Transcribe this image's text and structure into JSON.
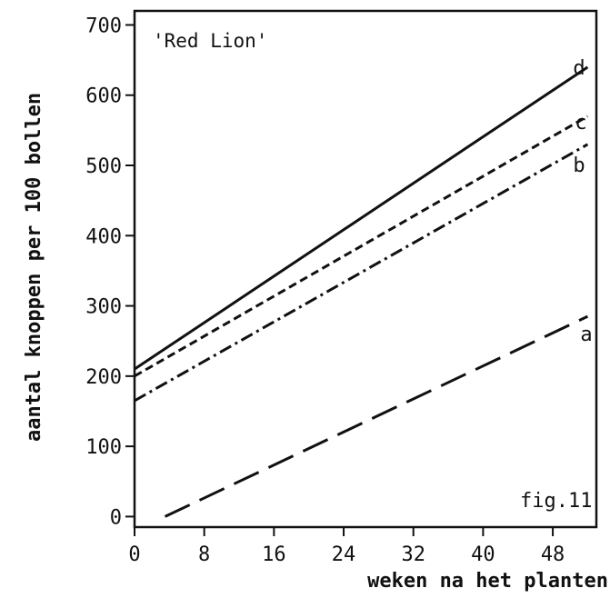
{
  "chart_data": {
    "type": "line",
    "title": "'Red Lion'",
    "figure_label": "fig.11",
    "xlabel": "weken na het planten",
    "ylabel": "aantal knoppen per 100 bollen",
    "xlim": [
      0,
      53
    ],
    "ylim": [
      -15,
      720
    ],
    "xticks": [
      0,
      8,
      16,
      24,
      32,
      40,
      48
    ],
    "yticks": [
      0,
      100,
      200,
      300,
      400,
      500,
      600,
      700
    ],
    "grid": false,
    "series": [
      {
        "name": "a",
        "style": "long-dash",
        "x": [
          3.5,
          52
        ],
        "y": [
          0,
          285
        ]
      },
      {
        "name": "b",
        "style": "dash-dot",
        "x": [
          0,
          52
        ],
        "y": [
          165,
          530
        ]
      },
      {
        "name": "c",
        "style": "short-dash",
        "x": [
          0,
          52
        ],
        "y": [
          200,
          570
        ]
      },
      {
        "name": "d",
        "style": "solid",
        "x": [
          0,
          52
        ],
        "y": [
          210,
          640
        ]
      }
    ],
    "series_label_color": "#111111"
  }
}
